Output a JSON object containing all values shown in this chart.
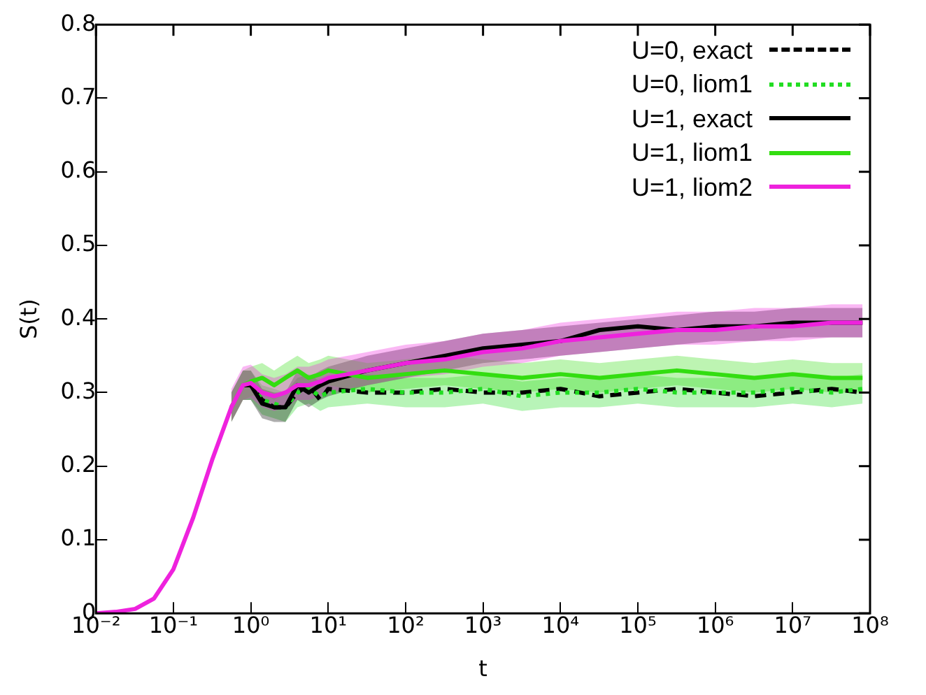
{
  "chart_data": {
    "type": "line",
    "xlabel": "t",
    "ylabel": "S(t)",
    "log": "x",
    "grid": false,
    "legend": "top right",
    "marker": "none",
    "xlim": [
      0.01,
      100000000
    ],
    "ylim": [
      0,
      0.8
    ],
    "xticks": [
      {
        "value": 0.01,
        "label": "10⁻²"
      },
      {
        "value": 0.1,
        "label": "10⁻¹"
      },
      {
        "value": 1,
        "label": "10⁰"
      },
      {
        "value": 10,
        "label": "10¹"
      },
      {
        "value": 100,
        "label": "10²"
      },
      {
        "value": 1000,
        "label": "10³"
      },
      {
        "value": 10000,
        "label": "10⁴"
      },
      {
        "value": 100000,
        "label": "10⁵"
      },
      {
        "value": 1000000,
        "label": "10⁶"
      },
      {
        "value": 10000000,
        "label": "10⁷"
      },
      {
        "value": 100000000,
        "label": "10⁸"
      }
    ],
    "yticks": [
      0,
      0.1,
      0.2,
      0.3,
      0.4,
      0.5,
      0.6,
      0.7,
      0.8
    ],
    "x": [
      0.01,
      0.018,
      0.032,
      0.056,
      0.1,
      0.18,
      0.32,
      0.56,
      0.79,
      1,
      1.4,
      2,
      2.8,
      4,
      5.6,
      7.9,
      10,
      32,
      100,
      320,
      1000,
      3200,
      10000,
      32000,
      100000,
      320000,
      1000000,
      3200000,
      10000000,
      32000000,
      80000000
    ],
    "series": [
      {
        "name": "U=0, exact",
        "color": "#000000",
        "line_style": "dashed",
        "values": [
          null,
          null,
          null,
          null,
          null,
          null,
          null,
          null,
          0.31,
          0.31,
          0.29,
          0.28,
          0.28,
          0.3,
          0.31,
          0.29,
          0.305,
          0.3,
          0.3,
          0.305,
          0.3,
          0.3,
          0.305,
          0.295,
          0.3,
          0.305,
          0.3,
          0.295,
          0.3,
          0.305,
          0.3
        ]
      },
      {
        "name": "U=0, liom1",
        "color": "#22dd22",
        "line_style": "dotted",
        "values": [
          null,
          null,
          null,
          null,
          null,
          null,
          null,
          null,
          0.31,
          0.31,
          0.29,
          0.285,
          0.28,
          0.3,
          0.305,
          0.295,
          0.3,
          0.305,
          0.3,
          0.3,
          0.305,
          0.295,
          0.3,
          0.3,
          0.305,
          0.3,
          0.3,
          0.3,
          0.305,
          0.3,
          0.305
        ],
        "lower": [
          null,
          null,
          null,
          null,
          null,
          null,
          null,
          0.26,
          0.29,
          0.29,
          0.27,
          0.265,
          0.26,
          0.28,
          0.285,
          0.275,
          0.28,
          0.285,
          0.28,
          0.28,
          0.285,
          0.275,
          0.28,
          0.28,
          0.285,
          0.28,
          0.28,
          0.28,
          0.285,
          0.28,
          0.285
        ],
        "upper": [
          null,
          null,
          null,
          null,
          null,
          null,
          null,
          0.3,
          0.33,
          0.33,
          0.31,
          0.305,
          0.3,
          0.32,
          0.325,
          0.315,
          0.32,
          0.325,
          0.32,
          0.32,
          0.325,
          0.315,
          0.32,
          0.32,
          0.325,
          0.32,
          0.32,
          0.32,
          0.325,
          0.32,
          0.325
        ]
      },
      {
        "name": "U=1, exact",
        "color": "#000000",
        "line_style": "solid",
        "values": [
          null,
          null,
          null,
          null,
          null,
          null,
          null,
          null,
          0.31,
          0.31,
          0.285,
          0.28,
          0.28,
          0.31,
          0.3,
          0.31,
          0.315,
          0.33,
          0.34,
          0.35,
          0.36,
          0.365,
          0.37,
          0.385,
          0.39,
          0.385,
          0.39,
          0.39,
          0.395,
          0.395,
          0.395
        ],
        "lower": [
          null,
          null,
          null,
          null,
          null,
          null,
          null,
          0.26,
          0.29,
          0.29,
          0.265,
          0.26,
          0.26,
          0.29,
          0.28,
          0.29,
          0.295,
          0.31,
          0.32,
          0.33,
          0.34,
          0.345,
          0.35,
          0.355,
          0.36,
          0.365,
          0.37,
          0.37,
          0.375,
          0.375,
          0.375
        ],
        "upper": [
          null,
          null,
          null,
          null,
          null,
          null,
          null,
          0.3,
          0.33,
          0.33,
          0.305,
          0.3,
          0.3,
          0.33,
          0.32,
          0.33,
          0.335,
          0.35,
          0.36,
          0.37,
          0.38,
          0.385,
          0.39,
          0.395,
          0.4,
          0.405,
          0.41,
          0.41,
          0.415,
          0.415,
          0.415
        ]
      },
      {
        "name": "U=1, liom1",
        "color": "#33dd11",
        "line_style": "solid",
        "values": [
          null,
          null,
          null,
          null,
          null,
          null,
          null,
          0.28,
          0.31,
          0.315,
          0.32,
          0.31,
          0.32,
          0.33,
          0.32,
          0.325,
          0.33,
          0.32,
          0.325,
          0.33,
          0.325,
          0.32,
          0.325,
          0.32,
          0.325,
          0.33,
          0.325,
          0.32,
          0.325,
          0.32,
          0.32
        ],
        "lower": [
          null,
          null,
          null,
          null,
          null,
          null,
          null,
          0.26,
          0.29,
          0.295,
          0.3,
          0.29,
          0.3,
          0.31,
          0.3,
          0.305,
          0.31,
          0.3,
          0.305,
          0.31,
          0.305,
          0.3,
          0.305,
          0.3,
          0.305,
          0.31,
          0.305,
          0.3,
          0.305,
          0.3,
          0.3
        ],
        "upper": [
          null,
          null,
          null,
          null,
          null,
          null,
          null,
          0.3,
          0.33,
          0.335,
          0.34,
          0.33,
          0.34,
          0.35,
          0.34,
          0.345,
          0.35,
          0.34,
          0.345,
          0.35,
          0.345,
          0.34,
          0.345,
          0.34,
          0.345,
          0.35,
          0.345,
          0.34,
          0.345,
          0.34,
          0.34
        ]
      },
      {
        "name": "U=1, liom2",
        "color": "#ee22dd",
        "line_style": "solid",
        "values": [
          0,
          0.002,
          0.006,
          0.02,
          0.06,
          0.13,
          0.21,
          0.28,
          0.31,
          0.313,
          0.3,
          0.295,
          0.3,
          0.31,
          0.31,
          0.315,
          0.32,
          0.33,
          0.34,
          0.345,
          0.355,
          0.36,
          0.37,
          0.375,
          0.38,
          0.385,
          0.385,
          0.39,
          0.39,
          0.395,
          0.395
        ],
        "lower": [
          null,
          null,
          null,
          null,
          null,
          null,
          null,
          0.26,
          0.29,
          0.293,
          0.28,
          0.275,
          0.28,
          0.29,
          0.29,
          0.295,
          0.3,
          0.31,
          0.32,
          0.325,
          0.335,
          0.34,
          0.35,
          0.355,
          0.36,
          0.365,
          0.365,
          0.37,
          0.37,
          0.375,
          0.375
        ],
        "upper": [
          null,
          null,
          null,
          null,
          null,
          null,
          null,
          0.305,
          0.335,
          0.338,
          0.325,
          0.32,
          0.325,
          0.335,
          0.335,
          0.34,
          0.345,
          0.355,
          0.365,
          0.37,
          0.38,
          0.385,
          0.395,
          0.4,
          0.405,
          0.41,
          0.41,
          0.415,
          0.415,
          0.42,
          0.42
        ]
      }
    ]
  }
}
